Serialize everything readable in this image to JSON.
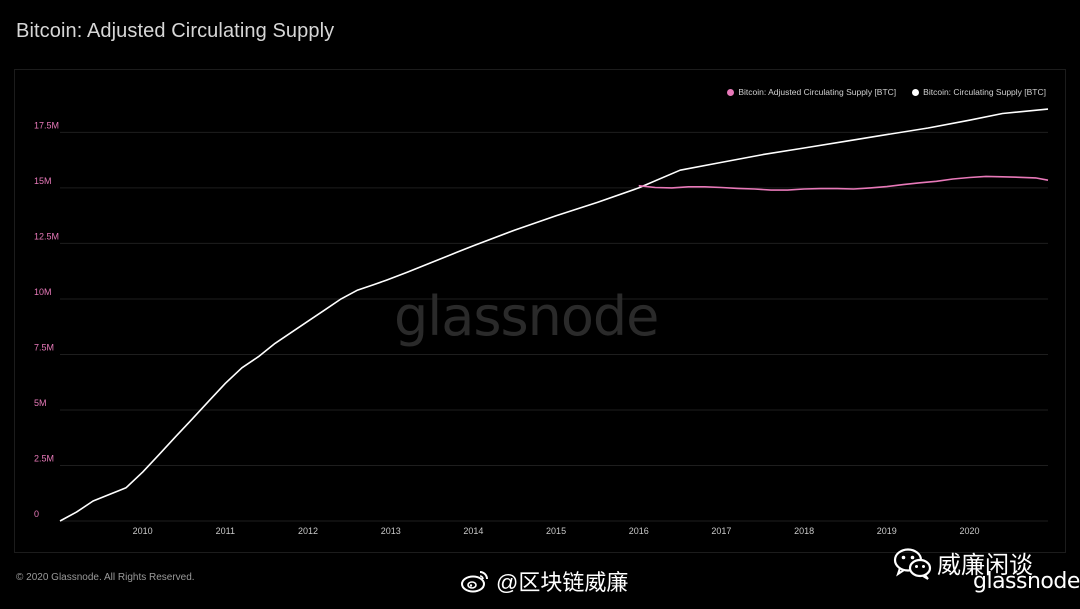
{
  "title": "Bitcoin: Adjusted Circulating Supply",
  "footer": "© 2020 Glassnode. All Rights Reserved.",
  "watermark": "glassnode",
  "weibo_handle": "@区块链威廉",
  "wechat_name": "威廉闲谈",
  "brand": "glassnode",
  "colors": {
    "background": "#000000",
    "adjusted": "#e879b9",
    "circulating": "#ffffff",
    "grid": "#1e1e1e",
    "tick_y": "#e879b9",
    "tick_x": "#c8c8c8"
  },
  "chart_data": {
    "type": "line",
    "title": "Bitcoin: Adjusted Circulating Supply",
    "xlabel": "",
    "ylabel": "",
    "xlim": [
      2009.0,
      2020.95
    ],
    "ylim": [
      0,
      19500000
    ],
    "y_ticks": [
      0,
      2500000,
      5000000,
      7500000,
      10000000,
      12500000,
      15000000,
      17500000
    ],
    "y_tick_labels": [
      "0",
      "2.5M",
      "5M",
      "7.5M",
      "10M",
      "12.5M",
      "15M",
      "17.5M"
    ],
    "x_ticks": [
      2010,
      2011,
      2012,
      2013,
      2014,
      2015,
      2016,
      2017,
      2018,
      2019,
      2020
    ],
    "x_tick_labels": [
      "2010",
      "2011",
      "2012",
      "2013",
      "2014",
      "2015",
      "2016",
      "2017",
      "2018",
      "2019",
      "2020"
    ],
    "grid": true,
    "legend_position": "top-right",
    "series": [
      {
        "name": "Bitcoin: Adjusted Circulating Supply [BTC]",
        "color": "#e879b9",
        "x": [
          2016.0,
          2016.2,
          2016.4,
          2016.6,
          2016.8,
          2017.0,
          2017.2,
          2017.4,
          2017.6,
          2017.8,
          2018.0,
          2018.2,
          2018.4,
          2018.6,
          2018.8,
          2019.0,
          2019.2,
          2019.4,
          2019.6,
          2019.8,
          2020.0,
          2020.2,
          2020.4,
          2020.6,
          2020.8,
          2020.95
        ],
        "y": [
          15100000,
          15020000,
          15000000,
          15050000,
          15050000,
          15020000,
          14980000,
          14950000,
          14900000,
          14900000,
          14950000,
          14970000,
          14970000,
          14950000,
          15000000,
          15060000,
          15150000,
          15230000,
          15300000,
          15400000,
          15470000,
          15520000,
          15500000,
          15480000,
          15450000,
          15350000
        ]
      },
      {
        "name": "Bitcoin: Circulating Supply [BTC]",
        "color": "#ffffff",
        "x": [
          2009.0,
          2009.2,
          2009.4,
          2009.6,
          2009.8,
          2010.0,
          2010.2,
          2010.4,
          2010.6,
          2010.8,
          2011.0,
          2011.2,
          2011.4,
          2011.6,
          2011.8,
          2012.0,
          2012.2,
          2012.4,
          2012.6,
          2012.8,
          2012.95,
          2013.2,
          2013.5,
          2013.8,
          2014.0,
          2014.5,
          2015.0,
          2015.5,
          2016.0,
          2016.5,
          2017.0,
          2017.5,
          2018.0,
          2018.5,
          2019.0,
          2019.5,
          2020.0,
          2020.4,
          2020.95
        ],
        "y": [
          0,
          400000,
          900000,
          1200000,
          1500000,
          2200000,
          3000000,
          3800000,
          4600000,
          5400000,
          6200000,
          6900000,
          7400000,
          8000000,
          8500000,
          9000000,
          9500000,
          10000000,
          10400000,
          10650000,
          10850000,
          11200000,
          11650000,
          12100000,
          12400000,
          13100000,
          13750000,
          14350000,
          15000000,
          15800000,
          16150000,
          16500000,
          16800000,
          17100000,
          17400000,
          17700000,
          18050000,
          18350000,
          18550000
        ]
      }
    ]
  }
}
